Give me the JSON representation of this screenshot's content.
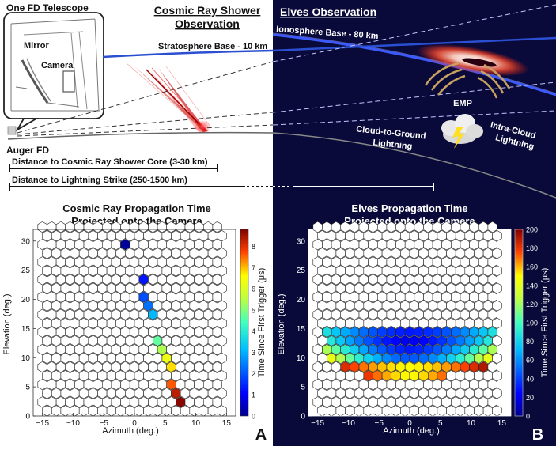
{
  "top_left": {
    "telescope_title": "One FD Telescope",
    "mirror_label": "Mirror",
    "camera_label": "Camera",
    "shower_title_line1": "Cosmic Ray Shower",
    "shower_title_line2": "Observation",
    "stratosphere_label": "Stratosphere Base - 10 km",
    "auger_label": "Auger FD",
    "distance_core_label": "Distance to Cosmic Ray Shower Core (3-30 km)",
    "distance_lightning_label": "Distance to Lightning Strike (250-1500 km)"
  },
  "top_right": {
    "title": "Elves Observation",
    "ionosphere_label": "Ionosphere Base - 80 km",
    "emp_label": "EMP",
    "cg_line1": "Cloud-to-Ground",
    "cg_line2": "Lightning",
    "ic_line1": "Intra-Cloud",
    "ic_line2": "Lightning"
  },
  "panel_labels": {
    "a": "A",
    "b": "B"
  },
  "colors": {
    "night_sky": "#0a0a3a",
    "ionosphere": "#3b5bff",
    "stratosphere": "#2a4fd0",
    "shower": "#d81010",
    "emp": "#c8a060"
  },
  "chart_data": [
    {
      "type": "heatmap",
      "title_line1": "Cosmic Ray Propagation Time",
      "title_line2": "Projected onto the Camera",
      "xlabel": "Azimuth (deg.)",
      "ylabel": "Elevation (deg.)",
      "colorbar_label": "Time Since First Trigger (μs)",
      "xlim": [
        -16.5,
        16.5
      ],
      "ylim": [
        0,
        32
      ],
      "x_ticks": [
        "−15",
        "−10",
        "−5",
        "0",
        "5",
        "10",
        "15"
      ],
      "y_ticks": [
        "0",
        "5",
        "10",
        "15",
        "20",
        "25",
        "30"
      ],
      "colorbar_ticks": [
        "0",
        "1",
        "2",
        "3",
        "4",
        "5",
        "6",
        "7",
        "8"
      ],
      "colorbar_range": [
        0,
        8.8
      ],
      "grid": {
        "rows": 22,
        "cols": 20,
        "row_spacing_deg": 1.5,
        "hex_width_deg": 1.5
      },
      "pixels": [
        {
          "az": -2.25,
          "el": 29.4,
          "t": 0.0
        },
        {
          "az": -1.5,
          "el": 29.4,
          "t": 0.1
        },
        {
          "az": -1.5,
          "el": 27.9,
          "t": 0.3
        },
        {
          "az": -0.75,
          "el": 26.4,
          "t": 0.5
        },
        {
          "az": 0.0,
          "el": 24.9,
          "t": 0.8
        },
        {
          "az": 0.75,
          "el": 23.4,
          "t": 1.1
        },
        {
          "az": 1.5,
          "el": 23.4,
          "t": 1.3
        },
        {
          "az": 1.5,
          "el": 21.9,
          "t": 1.5
        },
        {
          "az": 1.5,
          "el": 20.4,
          "t": 1.9
        },
        {
          "az": 2.25,
          "el": 18.9,
          "t": 2.3
        },
        {
          "az": 2.25,
          "el": 17.4,
          "t": 2.8
        },
        {
          "az": 3.0,
          "el": 17.4,
          "t": 3.1
        },
        {
          "az": 3.0,
          "el": 15.9,
          "t": 3.5
        },
        {
          "az": 3.75,
          "el": 14.4,
          "t": 4.0
        },
        {
          "az": 3.0,
          "el": 12.9,
          "t": 4.4
        },
        {
          "az": 3.75,
          "el": 12.9,
          "t": 4.7
        },
        {
          "az": 3.75,
          "el": 11.4,
          "t": 5.1
        },
        {
          "az": 4.5,
          "el": 11.4,
          "t": 5.4
        },
        {
          "az": 4.5,
          "el": 9.9,
          "t": 5.9
        },
        {
          "az": 5.25,
          "el": 9.9,
          "t": 6.3
        },
        {
          "az": 6.0,
          "el": 8.4,
          "t": 6.8
        },
        {
          "az": 6.0,
          "el": 6.9,
          "t": 7.2
        },
        {
          "az": 6.0,
          "el": 5.4,
          "t": 7.6
        },
        {
          "az": 6.75,
          "el": 5.4,
          "t": 7.9
        },
        {
          "az": 6.75,
          "el": 3.9,
          "t": 8.3
        },
        {
          "az": 7.5,
          "el": 3.9,
          "t": 8.5
        },
        {
          "az": 7.5,
          "el": 2.4,
          "t": 8.7
        }
      ]
    },
    {
      "type": "heatmap",
      "title_line1": "Elves Propagation Time",
      "title_line2": "Projected onto the Camera",
      "xlabel": "Azimuth (deg.)",
      "ylabel": "Elevation (deg.)",
      "colorbar_label": "Time Since First Trigger (μs)",
      "xlim": [
        -16.5,
        16.5
      ],
      "ylim": [
        0,
        32
      ],
      "x_ticks": [
        "−15",
        "−10",
        "−5",
        "0",
        "5",
        "10",
        "15"
      ],
      "y_ticks": [
        "0",
        "5",
        "10",
        "15",
        "20",
        "25",
        "30"
      ],
      "colorbar_ticks": [
        "0",
        "20",
        "40",
        "60",
        "80",
        "100",
        "120",
        "140",
        "160",
        "180",
        "200"
      ],
      "colorbar_range": [
        0,
        200
      ],
      "grid": {
        "rows": 22,
        "cols": 20,
        "row_spacing_deg": 1.5,
        "hex_width_deg": 1.5
      },
      "bands": [
        {
          "el": 14.4,
          "az_min": -14.25,
          "az_max": 14.25,
          "t_center": 30,
          "t_edge": 90
        },
        {
          "el": 12.9,
          "az_min": -13.5,
          "az_max": 13.5,
          "t_center": 20,
          "t_edge": 95
        },
        {
          "el": 11.4,
          "az_min": -14.25,
          "az_max": 14.25,
          "t_center": 30,
          "t_edge": 130
        },
        {
          "el": 9.9,
          "az_min": -13.5,
          "az_max": 13.5,
          "t_center": 45,
          "t_edge": 150
        },
        {
          "el": 8.4,
          "az_min": -11.25,
          "az_max": 12.75,
          "t_center": 150,
          "t_edge": 195
        },
        {
          "el": 6.9,
          "az_min": -7.5,
          "az_max": 6.0,
          "t_center": 150,
          "t_edge": 185
        }
      ]
    }
  ]
}
